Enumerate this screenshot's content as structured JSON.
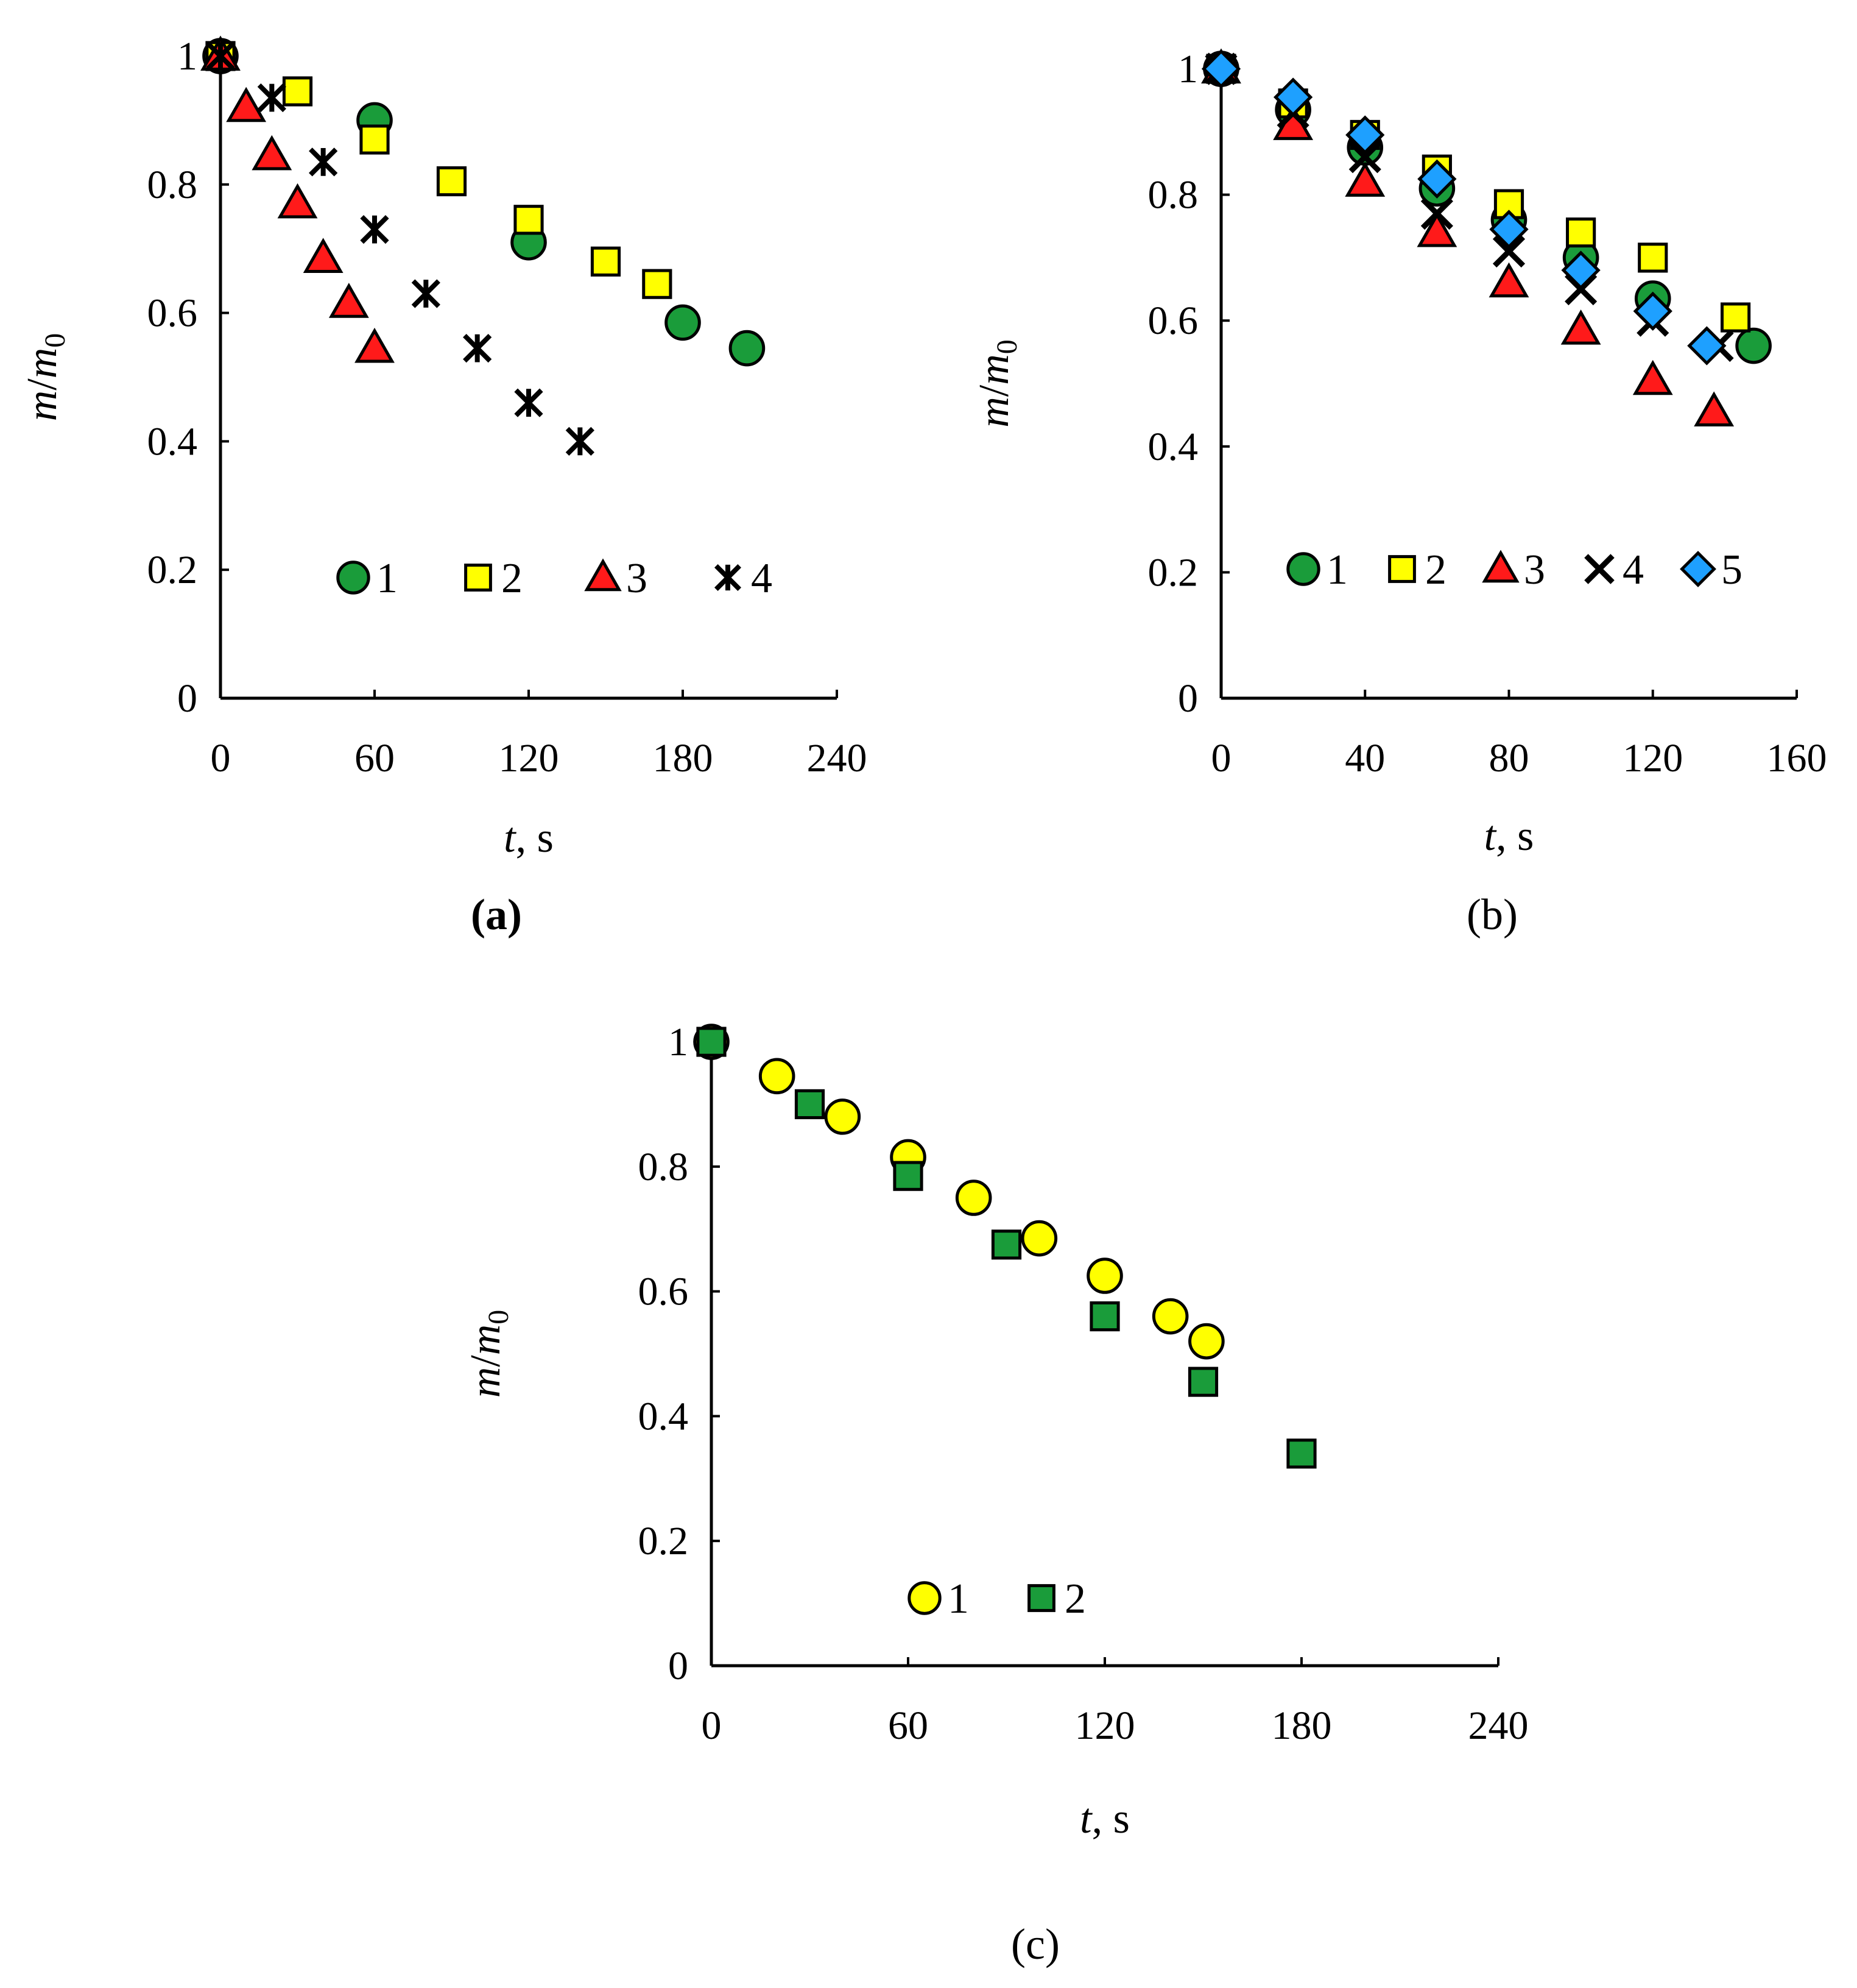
{
  "figure": {
    "panels": [
      {
        "id": "a",
        "label": "(a)"
      },
      {
        "id": "b",
        "label": "(b)"
      },
      {
        "id": "c",
        "label": "(c)"
      }
    ]
  },
  "series_styles": {
    "green-circle": {
      "shape": "circle",
      "fill": "#1a9c3a"
    },
    "yellow-square": {
      "shape": "square",
      "fill": "#ffff00"
    },
    "red-triangle": {
      "shape": "triangle",
      "fill": "#ff1a1a"
    },
    "black-asterisk": {
      "shape": "asterisk",
      "fill": "#000000"
    },
    "black-x": {
      "shape": "x",
      "fill": "#000000"
    },
    "blue-diamond": {
      "shape": "diamond",
      "fill": "#1ea0ff"
    },
    "yellow-circle": {
      "shape": "circle",
      "fill": "#ffff00"
    },
    "green-square": {
      "shape": "square",
      "fill": "#1a9c3a"
    }
  },
  "chart_data": [
    {
      "id": "a",
      "type": "scatter",
      "title": "(a)",
      "xlabel_italic": "t",
      "xlabel_unit": ", s",
      "ylabel_italic": "m",
      "ylabel_sep": "/",
      "ylabel_italic2": "m",
      "ylabel_sub": "0",
      "xlim": [
        0,
        240
      ],
      "ylim": [
        0,
        1
      ],
      "xticks": [
        "0",
        "60",
        "120",
        "180",
        "240"
      ],
      "yticks": [
        "0",
        "0.2",
        "0.4",
        "0.6",
        "0.8",
        "1"
      ],
      "legend_position": "bottom-center",
      "series": [
        {
          "name": "1",
          "marker": "green-circle",
          "x": [
            0,
            60,
            120,
            180,
            205
          ],
          "y": [
            1.0,
            0.9,
            0.71,
            0.585,
            0.545
          ]
        },
        {
          "name": "2",
          "marker": "yellow-square",
          "x": [
            0,
            30,
            60,
            90,
            120,
            150,
            170
          ],
          "y": [
            1.0,
            0.945,
            0.87,
            0.805,
            0.745,
            0.68,
            0.645
          ]
        },
        {
          "name": "3",
          "marker": "red-triangle",
          "x": [
            0,
            10,
            20,
            30,
            40,
            50,
            60
          ],
          "y": [
            1.0,
            0.92,
            0.845,
            0.77,
            0.685,
            0.615,
            0.545
          ]
        },
        {
          "name": "4",
          "marker": "black-asterisk",
          "x": [
            0,
            20,
            40,
            60,
            80,
            100,
            120,
            140
          ],
          "y": [
            1.0,
            0.935,
            0.835,
            0.73,
            0.63,
            0.545,
            0.46,
            0.4
          ]
        }
      ]
    },
    {
      "id": "b",
      "type": "scatter",
      "title": "(b)",
      "xlabel_italic": "t",
      "xlabel_unit": ", s",
      "ylabel_italic": "m",
      "ylabel_sep": "/",
      "ylabel_italic2": "m",
      "ylabel_sub": "0",
      "xlim": [
        0,
        160
      ],
      "ylim": [
        0,
        1
      ],
      "xticks": [
        "0",
        "40",
        "80",
        "120",
        "160"
      ],
      "yticks": [
        "0",
        "0.2",
        "0.4",
        "0.6",
        "0.8",
        "1"
      ],
      "legend_position": "bottom-center",
      "series": [
        {
          "name": "1",
          "marker": "green-circle",
          "x": [
            0,
            20,
            40,
            60,
            80,
            100,
            120,
            148
          ],
          "y": [
            1.0,
            0.935,
            0.875,
            0.81,
            0.76,
            0.7,
            0.635,
            0.56
          ]
        },
        {
          "name": "2",
          "marker": "yellow-square",
          "x": [
            0,
            20,
            40,
            60,
            80,
            100,
            120,
            143
          ],
          "y": [
            1.0,
            0.945,
            0.895,
            0.84,
            0.785,
            0.74,
            0.7,
            0.605
          ]
        },
        {
          "name": "3",
          "marker": "red-triangle",
          "x": [
            0,
            20,
            40,
            60,
            80,
            100,
            120,
            137
          ],
          "y": [
            1.0,
            0.91,
            0.82,
            0.74,
            0.66,
            0.585,
            0.505,
            0.455
          ]
        },
        {
          "name": "4",
          "marker": "black-x",
          "x": [
            0,
            20,
            40,
            60,
            80,
            100,
            120,
            138
          ],
          "y": [
            1.0,
            0.93,
            0.86,
            0.77,
            0.71,
            0.65,
            0.6,
            0.56
          ]
        },
        {
          "name": "5",
          "marker": "blue-diamond",
          "x": [
            0,
            20,
            40,
            60,
            80,
            100,
            120,
            135
          ],
          "y": [
            1.0,
            0.955,
            0.895,
            0.825,
            0.745,
            0.68,
            0.615,
            0.56
          ]
        }
      ]
    },
    {
      "id": "c",
      "type": "scatter",
      "title": "(c)",
      "xlabel_italic": "t",
      "xlabel_unit": ", s",
      "ylabel_italic": "m",
      "ylabel_sep": "/",
      "ylabel_italic2": "m",
      "ylabel_sub": "0",
      "xlim": [
        0,
        240
      ],
      "ylim": [
        0,
        1
      ],
      "xticks": [
        "0",
        "60",
        "120",
        "180",
        "240"
      ],
      "yticks": [
        "0",
        "0.2",
        "0.4",
        "0.6",
        "0.8",
        "1"
      ],
      "legend_position": "bottom-center",
      "series": [
        {
          "name": "1",
          "marker": "yellow-circle",
          "x": [
            0,
            20,
            40,
            60,
            80,
            100,
            120,
            140,
            151
          ],
          "y": [
            1.0,
            0.945,
            0.88,
            0.815,
            0.75,
            0.685,
            0.625,
            0.56,
            0.52
          ]
        },
        {
          "name": "2",
          "marker": "green-square",
          "x": [
            0,
            30,
            60,
            90,
            120,
            150,
            180
          ],
          "y": [
            1.0,
            0.9,
            0.785,
            0.675,
            0.56,
            0.455,
            0.34
          ]
        }
      ]
    }
  ]
}
